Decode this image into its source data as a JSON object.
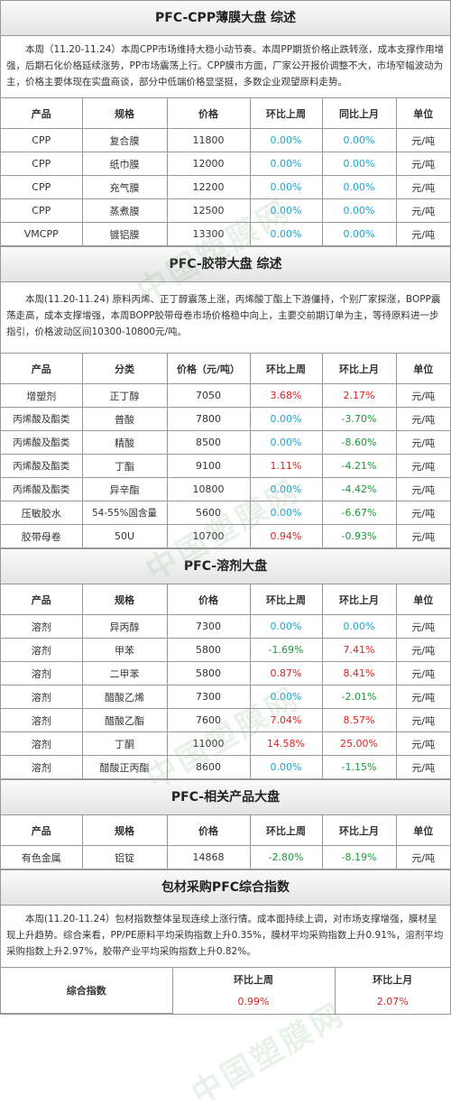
{
  "watermark": "中国塑膜网",
  "colors": {
    "up": "#e01f1f",
    "down": "#1a9a3a",
    "flat": "#1aa6d6"
  },
  "cpp": {
    "title": "PFC-CPP薄膜大盘 综述",
    "summary": "本周（11.20-11.24）本周CPP市场维持大稳小动节奏。本周PP期货价格止跌转涨，成本支撑作用增强，后期石化价格延续涨势，PP市场震荡上行。CPP膜市方面，厂家公开报价调整不大，市场窄幅波动为主，价格主要体现在实盘商谈，部分中低端价格显坚挺，多数企业观望原料走势。",
    "headers": [
      "产品",
      "规格",
      "价格",
      "环比上周",
      "同比上月",
      "单位"
    ],
    "rows": [
      [
        "CPP",
        "复合膜",
        "11800",
        "0.00%",
        "0.00%",
        "元/吨"
      ],
      [
        "CPP",
        "纸巾膜",
        "12000",
        "0.00%",
        "0.00%",
        "元/吨"
      ],
      [
        "CPP",
        "充气膜",
        "12200",
        "0.00%",
        "0.00%",
        "元/吨"
      ],
      [
        "CPP",
        "蒸煮膜",
        "12500",
        "0.00%",
        "0.00%",
        "元/吨"
      ],
      [
        "VMCPP",
        "镀铝膜",
        "13300",
        "0.00%",
        "0.00%",
        "元/吨"
      ]
    ]
  },
  "tape": {
    "title": "PFC-胶带大盘 综述",
    "summary": "本周(11.20-11.24) 原料丙烯、正丁醇震荡上涨，丙烯酸丁酯上下游僵持，个别厂家探涨，BOPP震荡走高，成本支撑增强，本周BOPP胶带母卷市场价格稳中向上，主要交前期订单为主，等待原料进一步指引，价格波动区间10300-10800元/吨。",
    "headers": [
      "产品",
      "分类",
      "价格（元/吨）",
      "环比上周",
      "环比上月",
      "单位"
    ],
    "rows": [
      [
        "增塑剂",
        "正丁醇",
        "7050",
        "3.68%",
        "2.17%",
        "元/吨"
      ],
      [
        "丙烯酸及酯类",
        "普酸",
        "7800",
        "0.00%",
        "-3.70%",
        "元/吨"
      ],
      [
        "丙烯酸及酯类",
        "精酸",
        "8500",
        "0.00%",
        "-8.60%",
        "元/吨"
      ],
      [
        "丙烯酸及酯类",
        "丁酯",
        "9100",
        "1.11%",
        "-4.21%",
        "元/吨"
      ],
      [
        "丙烯酸及酯类",
        "异辛酯",
        "10800",
        "0.00%",
        "-4.42%",
        "元/吨"
      ],
      [
        "压敏胶水",
        "54-55%固含量",
        "5600",
        "0.00%",
        "-6.67%",
        "元/吨"
      ],
      [
        "胶带母卷",
        "50U",
        "10700",
        "0.94%",
        "-0.93%",
        "元/吨"
      ]
    ]
  },
  "solvent": {
    "title": "PFC-溶剂大盘",
    "headers": [
      "产品",
      "规格",
      "价格",
      "环比上周",
      "环比上月",
      "单位"
    ],
    "rows": [
      [
        "溶剂",
        "异丙醇",
        "7300",
        "0.00%",
        "0.00%",
        "元/吨"
      ],
      [
        "溶剂",
        "甲苯",
        "5800",
        "-1.69%",
        "7.41%",
        "元/吨"
      ],
      [
        "溶剂",
        "二甲苯",
        "5800",
        "0.87%",
        "8.41%",
        "元/吨"
      ],
      [
        "溶剂",
        "醋酸乙烯",
        "7300",
        "0.00%",
        "-2.01%",
        "元/吨"
      ],
      [
        "溶剂",
        "醋酸乙酯",
        "7600",
        "7.04%",
        "8.57%",
        "元/吨"
      ],
      [
        "溶剂",
        "丁酮",
        "11000",
        "14.58%",
        "25.00%",
        "元/吨"
      ],
      [
        "溶剂",
        "醋酸正丙酯",
        "8600",
        "0.00%",
        "-1.15%",
        "元/吨"
      ]
    ]
  },
  "related": {
    "title": "PFC-相关产品大盘",
    "headers": [
      "产品",
      "规格",
      "价格",
      "环比上周",
      "环比上月",
      "单位"
    ],
    "rows": [
      [
        "有色金属",
        "铝锭",
        "14868",
        "-2.80%",
        "-8.19%",
        "元/吨"
      ]
    ]
  },
  "index": {
    "title": "包材采购PFC综合指数",
    "summary": "本周(11.20-11.24）包材指数整体呈现连续上涨行情。成本面持续上调，对市场支撑增强，膜材呈现上升趋势。综合来看，PP/PE原料平均采购指数上升0.35%，膜材平均采购指数上升0.91%，溶剂平均采购指数上升2.97%，胶带产业平均采购指数上升0.82%。",
    "label": "综合指数",
    "headers": [
      "环比上周",
      "环比上月"
    ],
    "values": [
      "0.99%",
      "2.07%"
    ]
  }
}
